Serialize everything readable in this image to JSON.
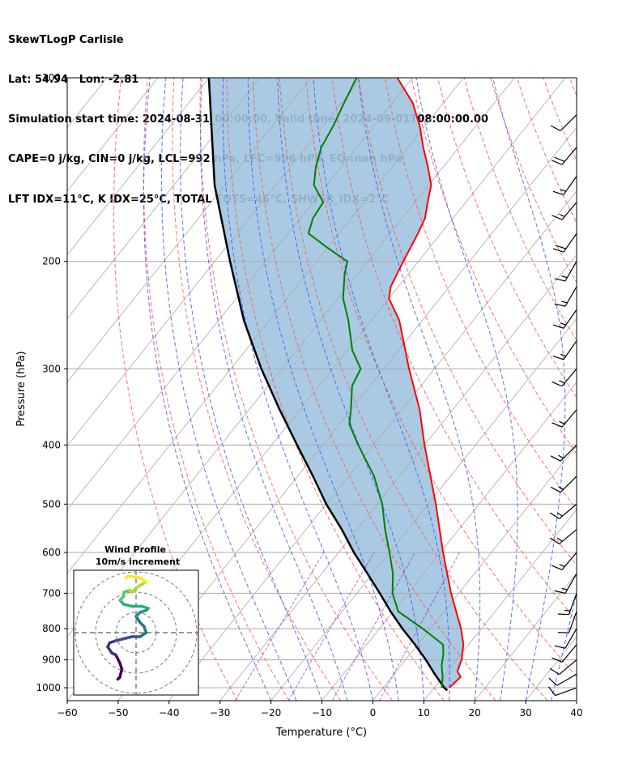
{
  "title": {
    "line1": "SkewTLogP Carlisle",
    "line2": "Lat: 54.94   Lon: -2.81",
    "line3": "Simulation start time: 2024-08-31_00:00:00, Valid time: 2024-09-01T08:00:00.00",
    "line4": "CAPE=0 j/kg, CIN=0 j/kg, LCL=992 hPa, LFC=996 hPa, EQ=nan hPa",
    "line5": "LFT IDX=11°C, K IDX=25°C, TOTAL TOTS=45°C, SHWTR_IDX=2°C"
  },
  "colors": {
    "temperature": "#ff0000",
    "dewpoint": "#008000",
    "parcel": "#000000",
    "shade": "#a0c4df",
    "dry_adiabat": "#ff5555",
    "moist_adiabat": "#4455ff",
    "mixing_ratio": "#9933cc",
    "isotherm": "#aaaaaa"
  },
  "chart_data": [
    {
      "type": "line",
      "subtype": "skew-t log-p",
      "xlabel": "Temperature (°C)",
      "ylabel": "Pressure (hPa)",
      "xlim": [
        -60,
        40
      ],
      "ylim": [
        1050,
        100
      ],
      "yscale": "log",
      "xticks": [
        -60,
        -50,
        -40,
        -30,
        -20,
        -10,
        0,
        10,
        20,
        30,
        40
      ],
      "xtick_labels": [
        "−60",
        "−50",
        "−40",
        "−30",
        "−20",
        "−10",
        "0",
        "10",
        "20",
        "30",
        "40"
      ],
      "yticks": [
        1000,
        900,
        800,
        700,
        600,
        500,
        400,
        300,
        200,
        100
      ],
      "ytick_labels": [
        "1000",
        "900",
        "800",
        "700",
        "600",
        "500",
        "400",
        "300",
        "200",
        "100"
      ],
      "grid": true,
      "series": [
        {
          "key": "temperature",
          "pressure": [
            1000,
            960,
            940,
            900,
            850,
            800,
            700,
            600,
            500,
            400,
            350,
            300,
            250,
            230,
            220,
            200,
            180,
            170,
            160,
            150,
            140,
            130,
            120,
            110,
            100
          ],
          "values": [
            13.0,
            13.5,
            12.0,
            11.0,
            9.0,
            6.0,
            -1.5,
            -9.5,
            -18.5,
            -30.0,
            -36.5,
            -45.0,
            -54.5,
            -60.0,
            -61.5,
            -63.0,
            -64.5,
            -65.5,
            -67.5,
            -69.5,
            -73.0,
            -77.0,
            -81.0,
            -86.0,
            -93.0
          ]
        },
        {
          "key": "dewpoint",
          "pressure": [
            1000,
            960,
            920,
            880,
            850,
            800,
            750,
            700,
            650,
            600,
            550,
            500,
            450,
            400,
            370,
            350,
            320,
            300,
            280,
            250,
            230,
            210,
            200,
            190,
            180,
            170,
            160,
            150,
            140,
            130,
            120,
            110,
            100
          ],
          "values": [
            11.5,
            10.0,
            8.0,
            6.5,
            5.0,
            -1.5,
            -9.0,
            -13.0,
            -16.0,
            -20.0,
            -24.5,
            -29.0,
            -35.0,
            -43.0,
            -48.0,
            -50.0,
            -53.5,
            -54.5,
            -59.0,
            -64.5,
            -69.0,
            -72.5,
            -74.0,
            -80.0,
            -86.0,
            -87.5,
            -88.0,
            -92.5,
            -95.0,
            -97.0,
            -98.0,
            -99.5,
            -101.0
          ]
        },
        {
          "key": "parcel",
          "pressure": [
            1010,
            1000,
            950,
            900,
            850,
            800,
            750,
            700,
            650,
            600,
            550,
            500,
            450,
            400,
            350,
            300,
            250,
            200,
            150,
            100
          ],
          "values": [
            13.0,
            12.0,
            8.0,
            4.0,
            -0.5,
            -5.5,
            -10.5,
            -15.5,
            -21.0,
            -27.0,
            -33.0,
            -40.0,
            -47.0,
            -55.0,
            -64.0,
            -74.0,
            -85.0,
            -97.0,
            -112.0,
            -130.0
          ]
        }
      ],
      "wind_barbs": [
        {
          "pressure": 1000,
          "speed_kt": 12,
          "dir_deg": 250
        },
        {
          "pressure": 950,
          "speed_kt": 10,
          "dir_deg": 240
        },
        {
          "pressure": 900,
          "speed_kt": 10,
          "dir_deg": 230
        },
        {
          "pressure": 850,
          "speed_kt": 10,
          "dir_deg": 220
        },
        {
          "pressure": 800,
          "speed_kt": 10,
          "dir_deg": 210
        },
        {
          "pressure": 750,
          "speed_kt": 10,
          "dir_deg": 200
        },
        {
          "pressure": 700,
          "speed_kt": 15,
          "dir_deg": 200
        },
        {
          "pressure": 650,
          "speed_kt": 15,
          "dir_deg": 210
        },
        {
          "pressure": 600,
          "speed_kt": 15,
          "dir_deg": 220
        },
        {
          "pressure": 550,
          "speed_kt": 15,
          "dir_deg": 230
        },
        {
          "pressure": 500,
          "speed_kt": 15,
          "dir_deg": 230
        },
        {
          "pressure": 450,
          "speed_kt": 15,
          "dir_deg": 225
        },
        {
          "pressure": 400,
          "speed_kt": 15,
          "dir_deg": 225
        },
        {
          "pressure": 350,
          "speed_kt": 15,
          "dir_deg": 220
        },
        {
          "pressure": 300,
          "speed_kt": 15,
          "dir_deg": 220
        },
        {
          "pressure": 270,
          "speed_kt": 15,
          "dir_deg": 215
        },
        {
          "pressure": 240,
          "speed_kt": 15,
          "dir_deg": 215
        },
        {
          "pressure": 220,
          "speed_kt": 15,
          "dir_deg": 210
        },
        {
          "pressure": 200,
          "speed_kt": 15,
          "dir_deg": 210
        },
        {
          "pressure": 180,
          "speed_kt": 20,
          "dir_deg": 215
        },
        {
          "pressure": 160,
          "speed_kt": 15,
          "dir_deg": 220
        },
        {
          "pressure": 145,
          "speed_kt": 15,
          "dir_deg": 215
        },
        {
          "pressure": 130,
          "speed_kt": 20,
          "dir_deg": 220
        },
        {
          "pressure": 115,
          "speed_kt": 10,
          "dir_deg": 225
        }
      ]
    },
    {
      "type": "scatter",
      "subtype": "hodograph",
      "title": "Wind Profile",
      "subtitle": "10m/s increment",
      "ring_step": 10,
      "rings": 3,
      "u": [
        -4.5,
        -4.0,
        -3.5,
        -4.0,
        -5.0,
        -6.0,
        -7.0,
        -6.5,
        -5.0,
        -3.0,
        -1.0,
        1.0,
        2.5,
        2.0,
        1.0,
        0.0,
        1.0,
        2.5,
        3.0,
        1.5,
        -1.0,
        -3.0,
        -4.0,
        -3.0,
        -3.0,
        -1.5,
        -1.0,
        0.0,
        1.5,
        2.5,
        1.0,
        -2.0,
        -2.5
      ],
      "v": [
        -1.5,
        -1.0,
        1.0,
        2.5,
        4.5,
        5.0,
        6.5,
        7.5,
        8.0,
        8.5,
        9.0,
        9.0,
        10.0,
        11.5,
        12.5,
        14.0,
        15.0,
        15.5,
        16.0,
        16.5,
        16.5,
        17.0,
        18.0,
        19.0,
        20.0,
        20.5,
        20.0,
        21.0,
        22.0,
        22.5,
        23.5,
        24.0,
        23.5
      ],
      "colormap": "viridis"
    }
  ]
}
